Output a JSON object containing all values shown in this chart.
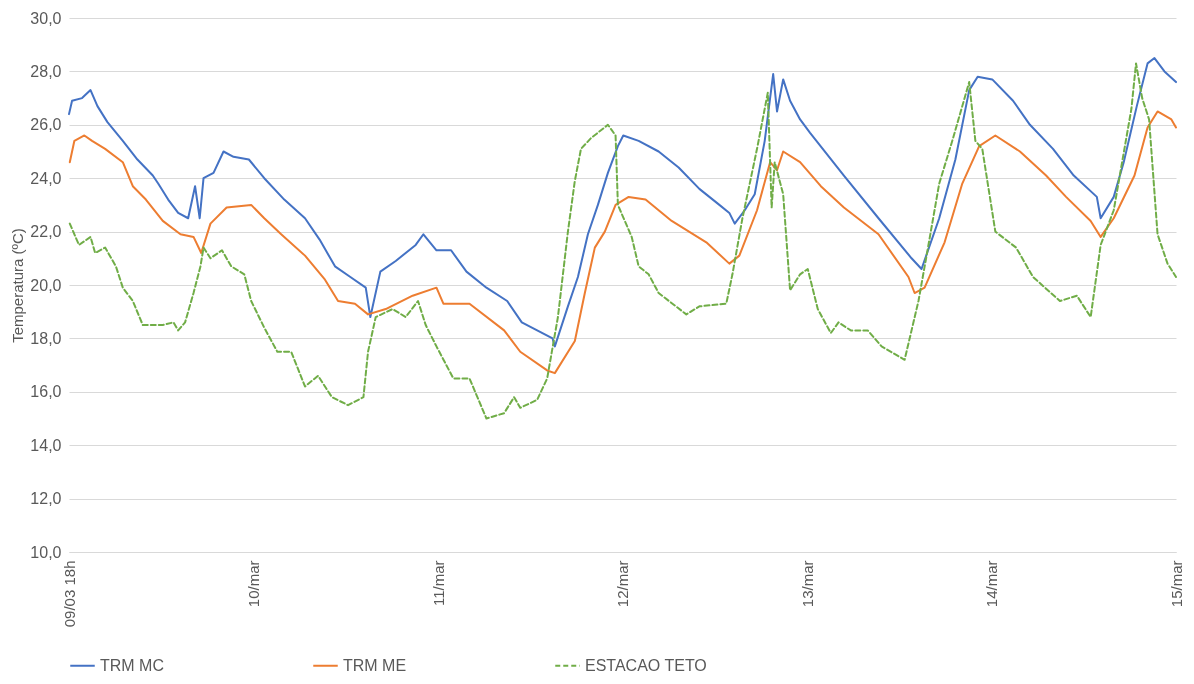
{
  "chart_data": {
    "type": "line",
    "ylabel": "Temperatura (ºC)",
    "legend": "bottom",
    "grid": "y",
    "marker": "none",
    "xlim": [
      "--03-09T18:00",
      "--03-15T18:00"
    ],
    "xticks": [
      {
        "value": "--03-09T18:00",
        "label": "09/03 18h"
      },
      {
        "value": "--03-10T18:00",
        "label": "10/mar"
      },
      {
        "value": "--03-11T18:00",
        "label": "11/mar"
      },
      {
        "value": "--03-12T18:00",
        "label": "12/mar"
      },
      {
        "value": "--03-13T18:00",
        "label": "13/mar"
      },
      {
        "value": "--03-14T18:00",
        "label": "14/mar"
      },
      {
        "value": "--03-15T18:00",
        "label": "15/mar"
      }
    ],
    "ylim": [
      10,
      30
    ],
    "yticks": [
      {
        "value": 10,
        "label": "10,0"
      },
      {
        "value": 12,
        "label": "12,0"
      },
      {
        "value": 14,
        "label": "14,0"
      },
      {
        "value": 16,
        "label": "16,0"
      },
      {
        "value": 18,
        "label": "18,0"
      },
      {
        "value": 20,
        "label": "20,0"
      },
      {
        "value": 22,
        "label": "22,0"
      },
      {
        "value": 24,
        "label": "24,0"
      },
      {
        "value": 26,
        "label": "26,0"
      },
      {
        "value": 28,
        "label": "28,0"
      },
      {
        "value": 30,
        "label": "30,0"
      }
    ],
    "series": [
      {
        "name": "TRM  MC",
        "color": "#4472c4",
        "line_style": "solid",
        "x": [
          "--03-09T18:00",
          "--03-09T18:24",
          "--03-09T19:42",
          "--03-09T20:48",
          "--03-09T21:42",
          "--03-09T23:00",
          "--03-10T01:00",
          "--03-10T02:54",
          "--03-10T04:54",
          "--03-10T05:36",
          "--03-10T06:54",
          "--03-10T08:12",
          "--03-10T09:30",
          "--03-10T10:24",
          "--03-10T11:00",
          "--03-10T11:30",
          "--03-10T12:48",
          "--03-10T14:06",
          "--03-10T15:24",
          "--03-10T17:24",
          "--03-10T19:24",
          "--03-10T22:00",
          "--03-11T00:42",
          "--03-11T02:36",
          "--03-11T04:36",
          "--03-11T06:36",
          "--03-11T08:36",
          "--03-11T09:12",
          "--03-11T10:30",
          "--03-11T12:30",
          "--03-11T15:06",
          "--03-11T16:06",
          "--03-11T17:48",
          "--03-11T19:42",
          "--03-11T21:42",
          "--03-12T00:18",
          "--03-12T03:00",
          "--03-12T04:54",
          "--03-12T06:54",
          "--03-12T08:54",
          "--03-12T09:12",
          "--03-12T10:54",
          "--03-12T12:12",
          "--03-12T13:30",
          "--03-12T14:48",
          "--03-12T16:06",
          "--03-12T17:24",
          "--03-12T18:06",
          "--03-12T20:06",
          "--03-12T22:42",
          "--03-13T01:18",
          "--03-13T04:00",
          "--03-13T06:36",
          "--03-13T07:54",
          "--03-13T08:36",
          "--03-13T09:54",
          "--03-13T11:12",
          "--03-13T12:30",
          "--03-13T13:12",
          "--03-13T13:36",
          "--03-13T14:06",
          "--03-13T14:54",
          "--03-13T15:48",
          "--03-13T17:06",
          "--03-13T18:24",
          "--03-13T22:48",
          "--03-14T03:18",
          "--03-14T07:36",
          "--03-14T08:54",
          "--03-14T11:12",
          "--03-14T13:18",
          "--03-14T15:06",
          "--03-14T16:12",
          "--03-14T18:06",
          "--03-14T20:48",
          "--03-14T23:00",
          "--03-15T02:00",
          "--03-15T04:42",
          "--03-15T07:42",
          "--03-15T08:12",
          "--03-15T09:54",
          "--03-15T11:12",
          "--03-15T12:54",
          "--03-15T14:18",
          "--03-15T15:12",
          "--03-15T16:30",
          "--03-15T18:00"
        ],
        "values": [
          26.4,
          26.9,
          27.0,
          27.3,
          26.7,
          26.1,
          25.4,
          24.7,
          24.1,
          23.8,
          23.2,
          22.7,
          22.5,
          23.7,
          22.5,
          24.0,
          24.2,
          25.0,
          24.8,
          24.7,
          24.0,
          23.2,
          22.5,
          21.7,
          20.7,
          20.3,
          19.9,
          18.8,
          20.5,
          20.9,
          21.5,
          21.9,
          21.3,
          21.3,
          20.5,
          19.9,
          19.4,
          18.6,
          18.3,
          18.0,
          17.7,
          19.2,
          20.3,
          21.9,
          23.0,
          24.2,
          25.2,
          25.6,
          25.4,
          25.0,
          24.4,
          23.6,
          23.0,
          22.7,
          22.3,
          22.8,
          23.4,
          25.4,
          27.0,
          27.9,
          26.5,
          27.7,
          26.9,
          26.2,
          25.7,
          24.1,
          22.5,
          21.0,
          20.6,
          22.5,
          24.7,
          27.3,
          27.8,
          27.7,
          26.9,
          26.0,
          25.1,
          24.1,
          23.3,
          22.5,
          23.3,
          24.6,
          26.7,
          28.3,
          28.5,
          28.0,
          27.6
        ]
      },
      {
        "name": "TRM  ME",
        "color": "#ed7d31",
        "line_style": "solid",
        "x": [
          "--03-09T18:06",
          "--03-09T18:42",
          "--03-09T20:00",
          "--03-09T21:00",
          "--03-09T22:42",
          "--03-10T01:00",
          "--03-10T02:18",
          "--03-10T04:00",
          "--03-10T06:12",
          "--03-10T08:30",
          "--03-10T10:12",
          "--03-10T11:12",
          "--03-10T12:24",
          "--03-10T14:30",
          "--03-10T17:42",
          "--03-10T19:24",
          "--03-10T21:36",
          "--03-11T00:42",
          "--03-11T03:18",
          "--03-11T05:00",
          "--03-11T07:12",
          "--03-11T08:54",
          "--03-11T11:12",
          "--03-11T14:42",
          "--03-11T17:48",
          "--03-11T18:42",
          "--03-11T22:06",
          "--03-12T02:36",
          "--03-12T04:42",
          "--03-12T08:12",
          "--03-12T09:12",
          "--03-12T11:48",
          "--03-12T13:06",
          "--03-12T14:24",
          "--03-12T15:42",
          "--03-12T17:06",
          "--03-12T18:48",
          "--03-12T21:00",
          "--03-13T00:24",
          "--03-13T04:54",
          "--03-13T07:54",
          "--03-13T09:12",
          "--03-13T11:30",
          "--03-13T13:12",
          "--03-13T14:06",
          "--03-13T14:54",
          "--03-13T17:06",
          "--03-13T19:48",
          "--03-13T22:48",
          "--03-14T03:18",
          "--03-14T07:12",
          "--03-14T08:00",
          "--03-14T09:18",
          "--03-14T11:54",
          "--03-14T14:12",
          "--03-14T16:24",
          "--03-14T18:30",
          "--03-14T21:42",
          "--03-15T01:06",
          "--03-15T03:42",
          "--03-15T06:54",
          "--03-15T08:12",
          "--03-15T09:54",
          "--03-15T12:36",
          "--03-15T14:18",
          "--03-15T15:36",
          "--03-15T17:24",
          "--03-15T18:00"
        ],
        "values": [
          24.6,
          25.4,
          25.6,
          25.4,
          25.1,
          24.6,
          23.7,
          23.2,
          22.4,
          21.9,
          21.8,
          21.2,
          22.3,
          22.9,
          23.0,
          22.5,
          21.9,
          21.1,
          20.2,
          19.4,
          19.3,
          18.9,
          19.1,
          19.6,
          19.9,
          19.3,
          19.3,
          18.3,
          17.5,
          16.8,
          16.7,
          17.9,
          19.7,
          21.4,
          22.0,
          23.0,
          23.3,
          23.2,
          22.4,
          21.6,
          20.8,
          21.1,
          22.8,
          24.6,
          24.3,
          25.0,
          24.6,
          23.7,
          22.9,
          21.9,
          20.3,
          19.7,
          19.9,
          21.6,
          23.8,
          25.2,
          25.6,
          25.0,
          24.1,
          23.3,
          22.4,
          21.8,
          22.5,
          24.1,
          25.9,
          26.5,
          26.2,
          25.9
        ]
      },
      {
        "name": "ESTACAO TETO",
        "color": "#70ad47",
        "line_style": "dashed",
        "x": [
          "--03-09T18:06",
          "--03-09T19:18",
          "--03-09T20:48",
          "--03-09T21:24",
          "--03-09T22:42",
          "--03-10T00:06",
          "--03-10T01:00",
          "--03-10T02:18",
          "--03-10T03:36",
          "--03-10T06:12",
          "--03-10T07:36",
          "--03-10T08:12",
          "--03-10T09:06",
          "--03-10T10:12",
          "--03-10T11:06",
          "--03-10T11:30",
          "--03-10T12:24",
          "--03-10T13:54",
          "--03-10T15:06",
          "--03-10T16:48",
          "--03-10T17:42",
          "--03-10T19:24",
          "--03-10T21:06",
          "--03-10T22:54",
          "--03-11T00:42",
          "--03-11T02:24",
          "--03-11T04:12",
          "--03-11T06:18",
          "--03-11T08:18",
          "--03-11T08:54",
          "--03-11T09:54",
          "--03-11T12:06",
          "--03-11T13:48",
          "--03-11T15:24",
          "--03-11T16:24",
          "--03-11T17:48",
          "--03-11T20:00",
          "--03-11T22:06",
          "--03-12T00:18",
          "--03-12T02:36",
          "--03-12T03:54",
          "--03-12T04:42",
          "--03-12T06:54",
          "--03-12T08:12",
          "--03-12T09:36",
          "--03-12T10:54",
          "--03-12T11:48",
          "--03-12T12:36",
          "--03-12T13:54",
          "--03-12T16:06",
          "--03-12T17:06",
          "--03-12T17:24",
          "--03-12T19:12",
          "--03-12T20:06",
          "--03-12T21:24",
          "--03-12T22:42",
          "--03-13T02:18",
          "--03-13T04:00",
          "--03-13T07:30",
          "--03-13T08:18",
          "--03-13T09:36",
          "--03-13T11:30",
          "--03-13T12:54",
          "--03-13T13:24",
          "--03-13T13:48",
          "--03-13T14:54",
          "--03-13T15:48",
          "--03-13T17:06",
          "--03-13T18:06",
          "--03-13T19:24",
          "--03-13T21:06",
          "--03-13T22:06",
          "--03-13T23:42",
          "--03-14T01:54",
          "--03-14T03:42",
          "--03-14T06:42",
          "--03-14T08:30",
          "--03-14T09:48",
          "--03-14T11:12",
          "--03-14T12:54",
          "--03-14T15:06",
          "--03-14T15:54",
          "--03-14T16:48",
          "--03-14T18:30",
          "--03-14T21:12",
          "--03-14T23:24",
          "--03-15T02:54",
          "--03-15T05:06",
          "--03-15T06:54",
          "--03-15T08:12",
          "--03-15T09:54",
          "--03-15T12:12",
          "--03-15T12:48",
          "--03-15T13:36",
          "--03-15T14:30",
          "--03-15T15:36",
          "--03-15T16:54",
          "--03-15T18:00"
        ],
        "values": [
          22.3,
          21.5,
          21.8,
          21.2,
          21.4,
          20.7,
          19.9,
          19.4,
          18.5,
          18.5,
          18.6,
          18.3,
          18.6,
          19.7,
          20.7,
          21.4,
          21.0,
          21.3,
          20.7,
          20.4,
          19.4,
          18.4,
          17.5,
          17.5,
          16.2,
          16.6,
          15.8,
          15.5,
          15.8,
          17.5,
          18.8,
          19.1,
          18.8,
          19.4,
          18.5,
          17.7,
          16.5,
          16.5,
          15.0,
          15.2,
          15.8,
          15.4,
          15.7,
          16.5,
          18.8,
          22.0,
          23.9,
          25.1,
          25.5,
          26.0,
          25.6,
          23.0,
          21.8,
          20.7,
          20.4,
          19.7,
          18.9,
          19.2,
          19.3,
          20.4,
          22.5,
          25.1,
          27.2,
          22.9,
          24.6,
          23.4,
          19.8,
          20.4,
          20.6,
          19.1,
          18.2,
          18.6,
          18.3,
          18.3,
          17.7,
          17.2,
          19.4,
          21.5,
          23.8,
          25.4,
          27.6,
          25.4,
          25.1,
          22.0,
          21.4,
          20.3,
          19.4,
          19.6,
          18.8,
          21.5,
          22.8,
          26.6,
          28.3,
          27.0,
          26.2,
          21.9,
          20.8,
          20.3
        ]
      }
    ]
  }
}
